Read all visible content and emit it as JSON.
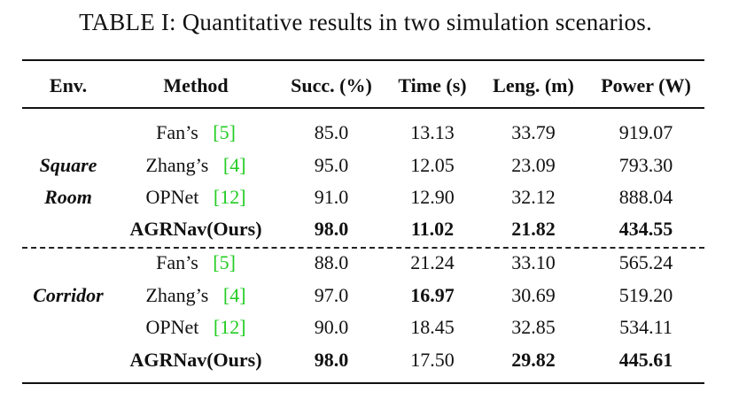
{
  "caption": "TABLE I: Quantitative results in two simulation scenarios.",
  "headers": {
    "env": "Env.",
    "method": "Method",
    "succ": "Succ. (%)",
    "time": "Time (s)",
    "leng": "Leng. (m)",
    "power": "Power (W)"
  },
  "groups": [
    {
      "env_line1": "Square",
      "env_line2": "Room",
      "rows": [
        {
          "method": "Fan’s",
          "ref": "[5]",
          "succ": "85.0",
          "time": "13.13",
          "leng": "33.79",
          "power": "919.07"
        },
        {
          "method": "Zhang’s",
          "ref": "[4]",
          "succ": "95.0",
          "time": "12.05",
          "leng": "23.09",
          "power": "793.30"
        },
        {
          "method": "OPNet",
          "ref": "[12]",
          "succ": "91.0",
          "time": "12.90",
          "leng": "32.12",
          "power": "888.04"
        },
        {
          "method": "AGRNav(Ours)",
          "ref": "",
          "succ": "98.0",
          "time": "11.02",
          "leng": "21.82",
          "power": "434.55"
        }
      ]
    },
    {
      "env_line1": "Corridor",
      "rows": [
        {
          "method": "Fan’s",
          "ref": "[5]",
          "succ": "88.0",
          "time": "21.24",
          "leng": "33.10",
          "power": "565.24"
        },
        {
          "method": "Zhang’s",
          "ref": "[4]",
          "succ": "97.0",
          "time": "16.97",
          "leng": "30.69",
          "power": "519.20"
        },
        {
          "method": "OPNet",
          "ref": "[12]",
          "succ": "90.0",
          "time": "18.45",
          "leng": "32.85",
          "power": "534.11"
        },
        {
          "method": "AGRNav(Ours)",
          "ref": "",
          "succ": "98.0",
          "time": "17.50",
          "leng": "29.82",
          "power": "445.61"
        }
      ]
    }
  ]
}
